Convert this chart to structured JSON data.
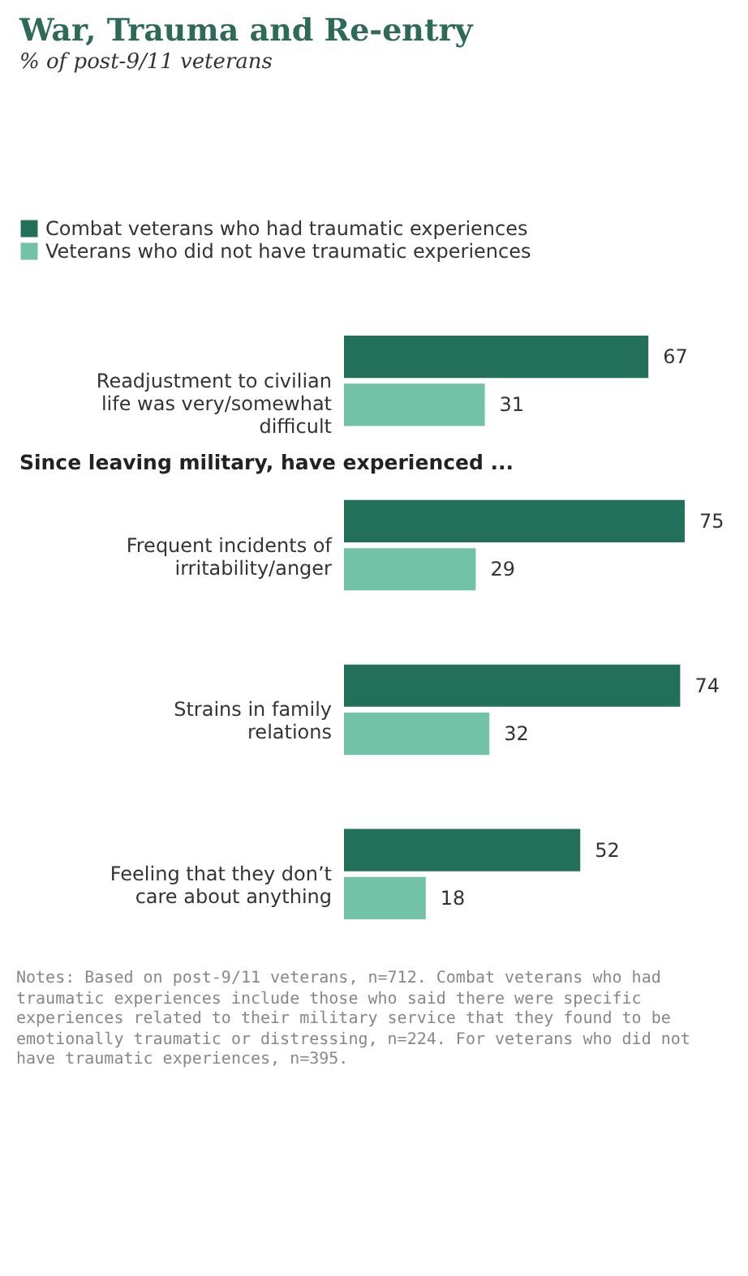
{
  "chart_data": {
    "type": "bar",
    "orientation": "horizontal",
    "title": "War, Trauma and Re-entry",
    "subtitle": "% of post-9/11 veterans",
    "categories": [
      "Readjustment to civilian life was very/somewhat difficult",
      "Frequent incidents of irritability/anger",
      "Strains in family relations",
      "Feeling that they don’t care about anything"
    ],
    "series": [
      {
        "name": "Combat veterans who had traumatic experiences",
        "color": "#22705a",
        "values": [
          67,
          75,
          74,
          52
        ]
      },
      {
        "name": "Veterans who did not have traumatic experiences",
        "color": "#72c2a8",
        "values": [
          31,
          29,
          32,
          18
        ]
      }
    ],
    "data_labels": true,
    "legend": "top left",
    "annotations": [
      "Since leaving military, have experienced ...",
      "Notes: Based on post-9/11 veterans, n=712. Combat veterans who had traumatic experiences include those who said there were specific experiences related to their military service that they found to be emotionally traumatic or distressing, n=224. For veterans who did not have traumatic experiences, n=395."
    ]
  }
}
